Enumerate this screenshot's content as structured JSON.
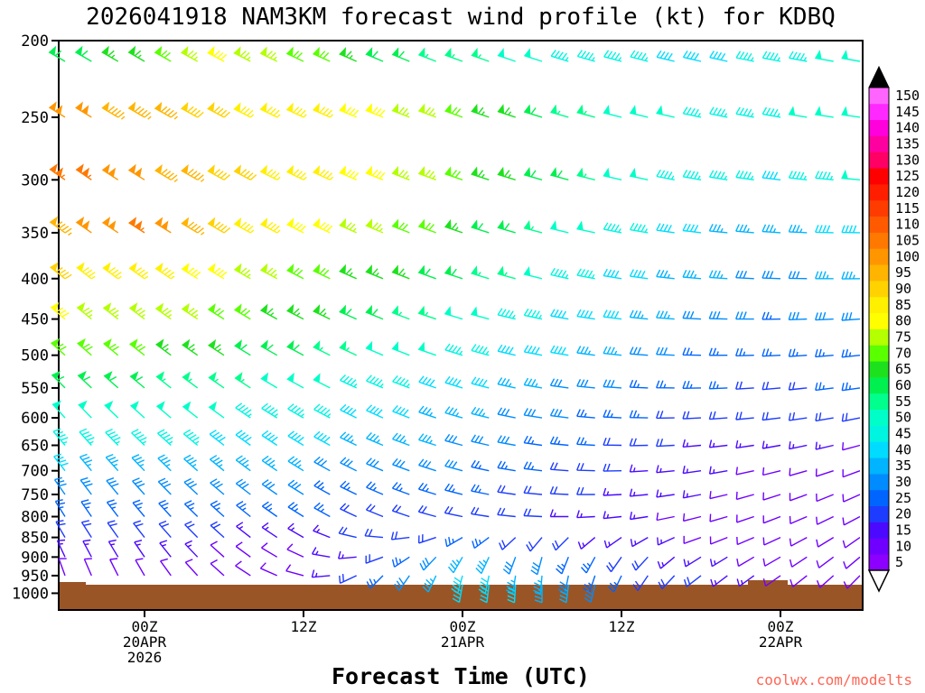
{
  "watermark": {
    "text": "coolwx.com/modelts",
    "color": "#ff6655"
  },
  "chart_data": {
    "type": "wind_barbs",
    "title": "2026041918 NAM3KM forecast wind profile (kt) for KDBQ",
    "xlabel": "Forecast Time (UTC)",
    "units": "kt",
    "x_axis": {
      "range_hours": [
        0,
        60
      ],
      "ticks": [
        {
          "hour": 6,
          "label": "00Z",
          "sub": "20APR",
          "sub2": "2026"
        },
        {
          "hour": 18,
          "label": "12Z",
          "sub": "",
          "sub2": ""
        },
        {
          "hour": 30,
          "label": "00Z",
          "sub": "21APR",
          "sub2": ""
        },
        {
          "hour": 42,
          "label": "12Z",
          "sub": "",
          "sub2": ""
        },
        {
          "hour": 54,
          "label": "00Z",
          "sub": "22APR",
          "sub2": ""
        }
      ]
    },
    "y_axis": {
      "scale": "log",
      "range_hpa": [
        200,
        1050
      ],
      "tick_labels": [
        200,
        250,
        300,
        350,
        400,
        450,
        500,
        550,
        600,
        650,
        700,
        750,
        800,
        850,
        900,
        950,
        1000
      ]
    },
    "ground": {
      "color": "#9a5526",
      "top_pressure_hpa": 975
    },
    "colorbar": {
      "values": [
        5,
        10,
        15,
        20,
        25,
        30,
        35,
        40,
        45,
        50,
        55,
        60,
        65,
        70,
        75,
        80,
        85,
        90,
        95,
        100,
        105,
        110,
        115,
        120,
        125,
        130,
        135,
        140,
        145,
        150
      ],
      "palette": [
        "#8b00ff",
        "#6f00ff",
        "#4b0aff",
        "#1e3cff",
        "#0064ff",
        "#008cff",
        "#00b4ff",
        "#00dcff",
        "#00f5e1",
        "#00ffc8",
        "#00ff8c",
        "#00f050",
        "#1ee11e",
        "#5aff00",
        "#b4ff00",
        "#ffff00",
        "#fff000",
        "#ffd200",
        "#ffb400",
        "#ff9600",
        "#ff7800",
        "#ff5a00",
        "#ff3c00",
        "#ff1e00",
        "#ff0000",
        "#ff0064",
        "#ff00a0",
        "#ff00dc",
        "#ff28ff",
        "#ff64ff"
      ],
      "over_arrow_color": "#000000",
      "under_arrow_color": "#ffffff"
    },
    "levels_hpa": [
      200,
      250,
      300,
      350,
      400,
      450,
      500,
      550,
      600,
      650,
      700,
      750,
      800,
      850,
      900,
      950,
      975
    ],
    "time_hours": [
      0,
      6,
      12,
      18,
      24,
      30,
      36,
      42,
      48,
      54,
      60
    ],
    "speed_kt": [
      [
        60,
        66,
        78,
        72,
        62,
        55,
        48,
        44,
        40,
        44,
        50
      ],
      [
        100,
        95,
        88,
        85,
        80,
        70,
        60,
        52,
        46,
        46,
        52
      ],
      [
        105,
        100,
        92,
        85,
        78,
        70,
        62,
        52,
        45,
        42,
        48
      ],
      [
        95,
        104,
        90,
        82,
        74,
        65,
        55,
        46,
        38,
        35,
        40
      ],
      [
        88,
        85,
        80,
        72,
        65,
        58,
        50,
        42,
        34,
        30,
        35
      ],
      [
        78,
        76,
        72,
        65,
        58,
        50,
        44,
        38,
        30,
        27,
        30
      ],
      [
        70,
        68,
        64,
        58,
        52,
        46,
        40,
        33,
        27,
        24,
        27
      ],
      [
        60,
        58,
        55,
        50,
        45,
        40,
        34,
        28,
        24,
        21,
        24
      ],
      [
        52,
        50,
        48,
        44,
        40,
        36,
        30,
        25,
        21,
        18,
        20
      ],
      [
        45,
        44,
        42,
        39,
        36,
        32,
        27,
        21,
        17,
        14,
        12
      ],
      [
        38,
        36,
        35,
        33,
        31,
        28,
        24,
        19,
        14,
        11,
        10
      ],
      [
        32,
        30,
        29,
        28,
        26,
        24,
        21,
        17,
        13,
        10,
        8
      ],
      [
        26,
        25,
        24,
        23,
        22,
        20,
        18,
        15,
        11,
        8,
        8
      ],
      [
        22,
        20,
        18,
        16,
        19,
        24,
        20,
        15,
        12,
        9,
        10
      ],
      [
        17,
        15,
        12,
        10,
        20,
        34,
        30,
        20,
        14,
        10,
        8
      ],
      [
        12,
        10,
        8,
        8,
        26,
        40,
        34,
        24,
        18,
        12,
        8
      ],
      [
        null,
        null,
        null,
        null,
        null,
        42,
        36,
        26,
        null,
        null,
        null
      ]
    ],
    "dir_deg": [
      [
        300,
        300,
        298,
        295,
        293,
        290,
        288,
        285,
        283,
        281,
        280
      ],
      [
        302,
        300,
        298,
        295,
        292,
        290,
        287,
        284,
        282,
        280,
        278
      ],
      [
        305,
        302,
        299,
        296,
        292,
        289,
        286,
        283,
        280,
        277,
        275
      ],
      [
        306,
        303,
        300,
        297,
        293,
        289,
        285,
        281,
        277,
        274,
        271
      ],
      [
        308,
        305,
        301,
        297,
        292,
        288,
        284,
        279,
        275,
        272,
        269
      ],
      [
        310,
        307,
        302,
        297,
        292,
        287,
        282,
        277,
        273,
        269,
        266
      ],
      [
        312,
        308,
        303,
        298,
        293,
        287,
        281,
        276,
        271,
        267,
        264
      ],
      [
        315,
        310,
        305,
        299,
        293,
        287,
        280,
        274,
        269,
        265,
        262
      ],
      [
        318,
        312,
        306,
        300,
        294,
        286,
        279,
        273,
        267,
        263,
        259
      ],
      [
        320,
        314,
        308,
        301,
        293,
        285,
        278,
        271,
        265,
        260,
        255
      ],
      [
        322,
        316,
        309,
        302,
        293,
        285,
        277,
        269,
        262,
        256,
        250
      ],
      [
        325,
        318,
        310,
        302,
        293,
        284,
        275,
        267,
        259,
        252,
        246
      ],
      [
        328,
        320,
        312,
        302,
        292,
        282,
        273,
        264,
        256,
        249,
        242
      ],
      [
        330,
        322,
        312,
        300,
        275,
        240,
        220,
        235,
        250,
        245,
        235
      ],
      [
        335,
        326,
        312,
        295,
        250,
        210,
        195,
        215,
        238,
        240,
        230
      ],
      [
        340,
        330,
        312,
        285,
        225,
        195,
        185,
        205,
        232,
        235,
        225
      ],
      [
        null,
        null,
        null,
        null,
        null,
        190,
        180,
        200,
        null,
        null,
        null
      ]
    ]
  }
}
